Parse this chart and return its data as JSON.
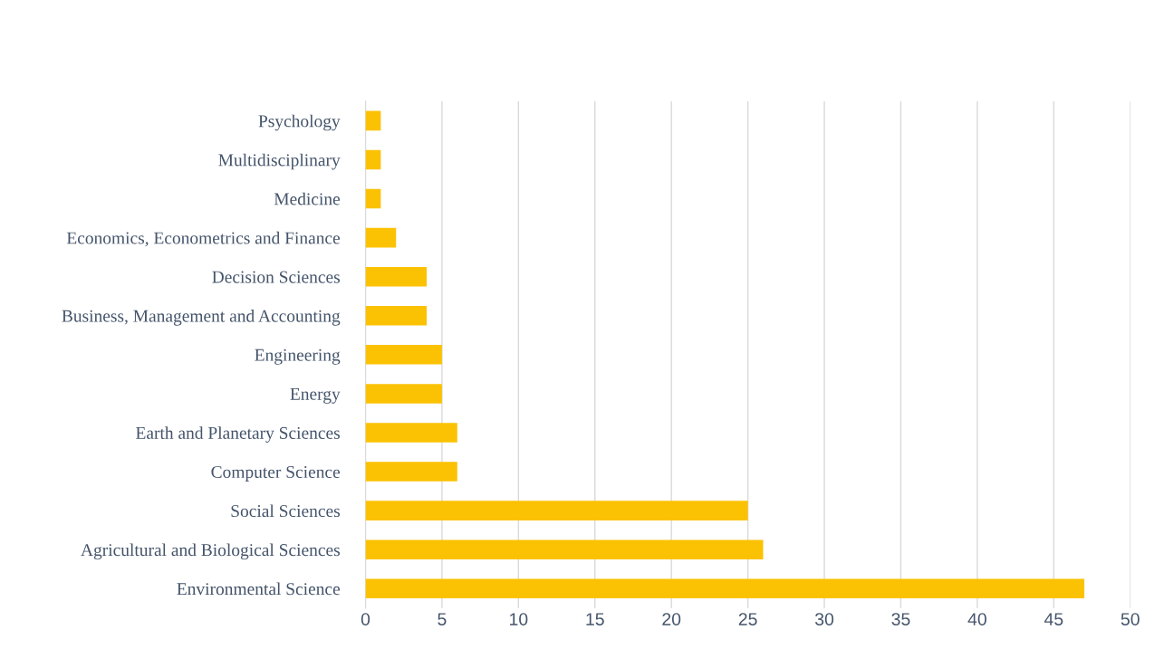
{
  "chart_data": {
    "type": "bar",
    "orientation": "horizontal",
    "categories": [
      "Psychology",
      "Multidisciplinary",
      "Medicine",
      "Economics, Econometrics and Finance",
      "Decision Sciences",
      "Business, Management and Accounting",
      "Engineering",
      "Energy",
      "Earth and Planetary Sciences",
      "Computer Science",
      "Social Sciences",
      "Agricultural and Biological Sciences",
      "Environmental Science"
    ],
    "values": [
      1,
      1,
      1,
      2,
      4,
      4,
      5,
      5,
      6,
      6,
      25,
      26,
      47
    ],
    "color": "#fbc203",
    "xlim": [
      0,
      50
    ],
    "xticks": [
      0,
      5,
      10,
      15,
      20,
      25,
      30,
      35,
      40,
      45,
      50
    ],
    "grid": "x"
  }
}
